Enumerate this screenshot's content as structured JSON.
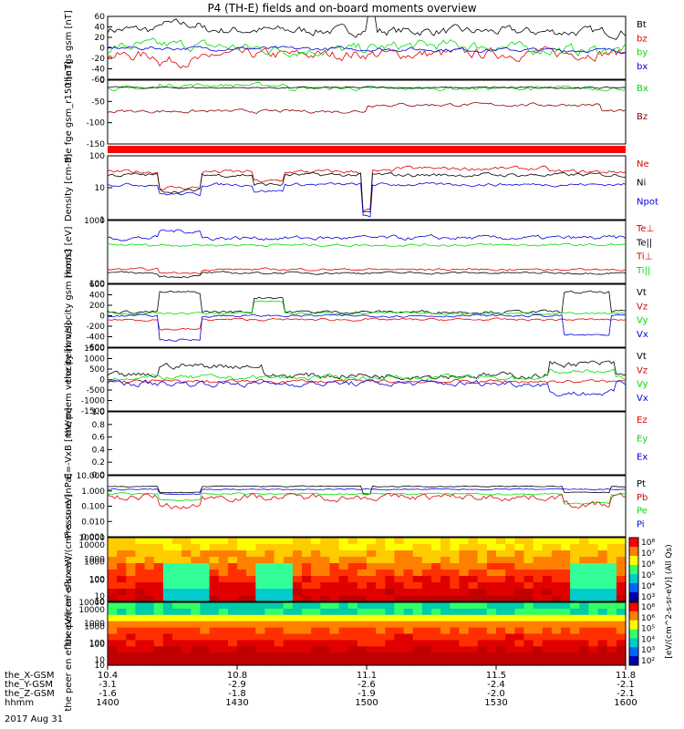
{
  "title": "P4 (TH-E) fields and on-board moments overview",
  "date": "2017 Aug 31",
  "colors": {
    "black": "#000000",
    "red": "#e00000",
    "green": "#00dd00",
    "blue": "#0000e0",
    "darkred": "#8b0000"
  },
  "xaxis": {
    "row_labels": [
      "the_X-GSM",
      "the_Y-GSM",
      "the_Z-GSM",
      "hhmm"
    ],
    "columns": [
      {
        "x": "10.4",
        "y": "-3.1",
        "z": "-1.6",
        "t": "1400"
      },
      {
        "x": "10.8",
        "y": "-2.9",
        "z": "-1.8",
        "t": "1430"
      },
      {
        "x": "11.1",
        "y": "-2.6",
        "z": "-1.9",
        "t": "1500"
      },
      {
        "x": "11.5",
        "y": "-2.4",
        "z": "-2.0",
        "t": "1530"
      },
      {
        "x": "11.8",
        "y": "-2.1",
        "z": "-2.1",
        "t": "1600"
      }
    ]
  },
  "chart_data": [
    {
      "type": "line",
      "ylabel": "the fgs gsm [nT]",
      "yticks": [
        "60",
        "40",
        "20",
        "0",
        "-20",
        "-40",
        "-60"
      ],
      "series": [
        {
          "name": "Bt",
          "color": "#000000"
        },
        {
          "name": "bz",
          "color": "#e00000"
        },
        {
          "name": "by",
          "color": "#00dd00"
        },
        {
          "name": "bx",
          "color": "#0000e0"
        }
      ]
    },
    {
      "type": "line",
      "ylabel": "the fge gsm_r150 [nT]",
      "yticks": [
        "0",
        "-50",
        "-100",
        "-150"
      ],
      "series": [
        {
          "name": "Bx",
          "color": "#00dd00"
        },
        {
          "name": "Bz",
          "color": "#8b0000"
        }
      ]
    },
    {
      "type": "line",
      "ylabel": "Density [cm-3]",
      "yticks": [
        "100",
        "10",
        "1"
      ],
      "log": true,
      "series": [
        {
          "name": "Ne",
          "color": "#e00000"
        },
        {
          "name": "Ni",
          "color": "#000000"
        },
        {
          "name": "Npot",
          "color": "#0000e0"
        }
      ]
    },
    {
      "type": "line",
      "ylabel": "mom3 [eV]",
      "yticks": [
        "1000",
        "100"
      ],
      "log": true,
      "series": [
        {
          "name": "Te⊥",
          "color": "#e00000"
        },
        {
          "name": "Te||",
          "color": "#000000"
        },
        {
          "name": "Ti⊥",
          "color": "#e00000"
        },
        {
          "name": "Ti||",
          "color": "#00dd00"
        }
      ]
    },
    {
      "type": "line",
      "ylabel": "the peim velocity gsm [km/s]",
      "yticks": [
        "600",
        "400",
        "200",
        "0",
        "-200",
        "-400",
        "-600"
      ],
      "series": [
        {
          "name": "Vt",
          "color": "#000000"
        },
        {
          "name": "Vz",
          "color": "#e00000"
        },
        {
          "name": "Vy",
          "color": "#00dd00"
        },
        {
          "name": "Vx",
          "color": "#0000e0"
        }
      ]
    },
    {
      "type": "line",
      "ylabel": "the peem velocity [km/s]",
      "yticks": [
        "1500",
        "1000",
        "500",
        "0",
        "-500",
        "-1000",
        "-1500"
      ],
      "series": [
        {
          "name": "Vt",
          "color": "#000000"
        },
        {
          "name": "Vz",
          "color": "#e00000"
        },
        {
          "name": "Vy",
          "color": "#00dd00"
        },
        {
          "name": "Vx",
          "color": "#0000e0"
        }
      ]
    },
    {
      "type": "line",
      "ylabel": "E=-VxB [mV/m]",
      "yticks": [
        "1.0",
        "0.8",
        "0.6",
        "0.4",
        "0.2",
        "0.0"
      ],
      "series": [
        {
          "name": "Ez",
          "color": "#e00000"
        },
        {
          "name": "Ey",
          "color": "#00dd00"
        },
        {
          "name": "Ex",
          "color": "#0000e0"
        }
      ]
    },
    {
      "type": "line",
      "ylabel": "Pressure [nPa]",
      "yticks": [
        "10.000",
        "1.000",
        "0.100",
        "0.010",
        "0.001"
      ],
      "log": true,
      "series": [
        {
          "name": "Pt",
          "color": "#000000"
        },
        {
          "name": "Pb",
          "color": "#e00000"
        },
        {
          "name": "Pe",
          "color": "#00dd00"
        },
        {
          "name": "Pi",
          "color": "#0000e0"
        }
      ]
    },
    {
      "type": "heatmap",
      "ylabel": "the peir en eflux eV/(cm²-s-sr-eV)",
      "yticks": [
        "10000",
        "1000",
        "100",
        "10"
      ],
      "colorbar": {
        "label": "[eV/(cm^2-s-sr-eV)] (All Qs)",
        "ticks": [
          "10⁸",
          "10⁷",
          "10⁶",
          "10⁵",
          "10⁴",
          "10³"
        ]
      }
    },
    {
      "type": "heatmap",
      "ylabel": "the peer en eflux eV/(cm²-s-sr-eV)",
      "yticks": [
        "10000",
        "1000",
        "100",
        "10"
      ],
      "colorbar": {
        "label": "",
        "ticks": [
          "10⁸",
          "10⁶",
          "10⁵",
          "10⁴",
          "10³",
          "10²"
        ]
      }
    }
  ]
}
